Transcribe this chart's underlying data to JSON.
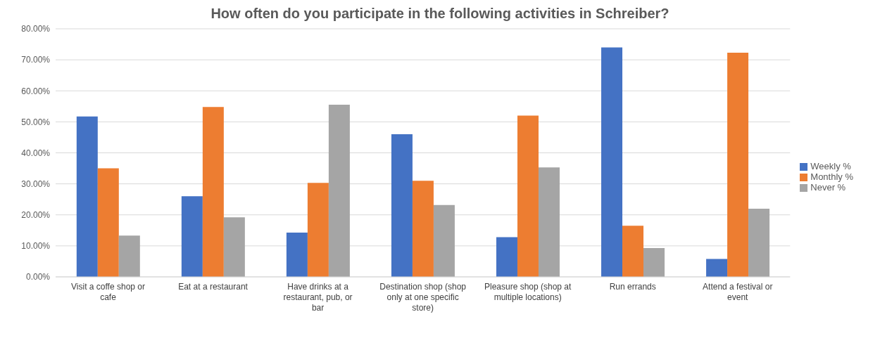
{
  "chart_data": {
    "type": "bar",
    "title": "How often do you participate in the following activities in Schreiber?",
    "categories": [
      "Visit a coffe shop or cafe",
      "Eat at a restaurant",
      "Have drinks at a restaurant, pub, or bar",
      "Destination shop (shop only at one specific store)",
      "Pleasure shop (shop at multiple locations)",
      "Run errands",
      "Attend a festival or event"
    ],
    "series": [
      {
        "name": "Weekly %",
        "color": "#4472c4",
        "values": [
          51.7,
          26,
          14.3,
          46,
          12.8,
          74,
          5.8
        ]
      },
      {
        "name": "Monthly %",
        "color": "#ed7d31",
        "values": [
          35,
          54.8,
          30.3,
          31,
          52,
          16.5,
          72.3
        ]
      },
      {
        "name": "Never %",
        "color": "#a5a5a5",
        "values": [
          13.3,
          19.2,
          55.5,
          23.2,
          35.3,
          9.3,
          22
        ]
      }
    ],
    "ylim": [
      0,
      80
    ],
    "yticks": [
      {
        "value": 0,
        "label": "0.00%"
      },
      {
        "value": 10,
        "label": "10.00%"
      },
      {
        "value": 20,
        "label": "20.00%"
      },
      {
        "value": 30,
        "label": "30.00%"
      },
      {
        "value": 40,
        "label": "40.00%"
      },
      {
        "value": 50,
        "label": "50.00%"
      },
      {
        "value": 60,
        "label": "60.00%"
      },
      {
        "value": 70,
        "label": "70.00%"
      },
      {
        "value": 80,
        "label": "80.00%"
      }
    ],
    "grid": "y",
    "legend": "right"
  }
}
